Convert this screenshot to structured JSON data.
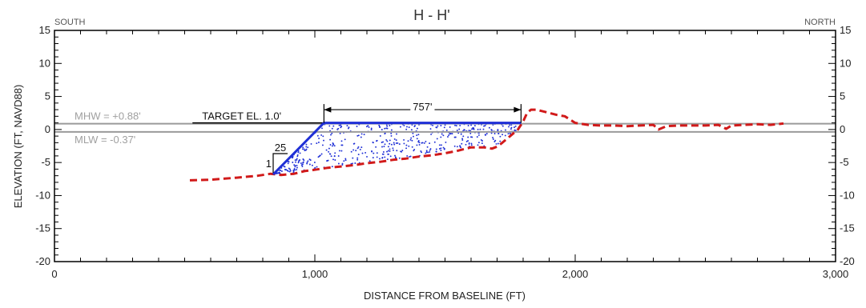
{
  "chart_data": {
    "type": "line",
    "title": "H - H'",
    "xlabel": "DISTANCE FROM BASELINE (FT)",
    "ylabel": "ELEVATION (FT, NAVD88)",
    "xlim": [
      0,
      3000
    ],
    "ylim": [
      -20,
      15
    ],
    "x_ticks": [
      0,
      1000,
      2000,
      3000
    ],
    "x_tick_labels": [
      "0",
      "1,000",
      "2,000",
      "3,000"
    ],
    "y_ticks": [
      -20,
      -15,
      -10,
      -5,
      0,
      5,
      10,
      15
    ],
    "y_tick_labels": [
      "-20",
      "-15",
      "-10",
      "-5",
      "0",
      "5",
      "10",
      "15"
    ],
    "direction_labels": {
      "left": "SOUTH",
      "right": "NORTH"
    },
    "grid": false,
    "colors": {
      "existing_profile": "#d11a1a",
      "fill_template": "#1f2fd6",
      "tide_lines": "#9a9a9a",
      "axis": "#000000"
    },
    "tide_lines": [
      {
        "label": "MHW = +0.88'",
        "y": 0.88
      },
      {
        "label": "MLW = -0.37'",
        "y": -0.37
      }
    ],
    "target": {
      "label": "TARGET EL. 1.0'",
      "y": 1.0,
      "x_start": 530,
      "x_end": 1035
    },
    "dimension": {
      "label": "757'",
      "x_start": 1035,
      "x_end": 1792,
      "y": 3.0
    },
    "slope": {
      "run_label": "25",
      "rise_label": "1"
    },
    "series": [
      {
        "style": "dashed",
        "x": [
          520,
          600,
          700,
          780,
          830,
          870,
          920,
          960,
          1000,
          1050,
          1100,
          1150,
          1200,
          1250,
          1300,
          1350,
          1400,
          1450,
          1500,
          1550,
          1600,
          1650,
          1680,
          1700,
          1720,
          1750,
          1780,
          1800,
          1815,
          1830,
          1850,
          1870,
          1900,
          1930,
          1960,
          2000,
          2050,
          2100,
          2150,
          2200,
          2250,
          2300,
          2320,
          2350,
          2400,
          2450,
          2500,
          2550,
          2580,
          2600,
          2650,
          2700,
          2750,
          2800
        ],
        "y": [
          -7.7,
          -7.6,
          -7.3,
          -7.0,
          -6.7,
          -6.9,
          -6.7,
          -6.3,
          -6.1,
          -5.8,
          -5.6,
          -5.4,
          -5.1,
          -4.9,
          -4.6,
          -4.4,
          -4.1,
          -3.9,
          -3.6,
          -3.2,
          -2.7,
          -2.7,
          -2.9,
          -2.6,
          -2.0,
          -1.0,
          0.0,
          1.2,
          2.5,
          3.0,
          3.0,
          2.8,
          2.5,
          2.2,
          2.0,
          1.0,
          0.7,
          0.6,
          0.6,
          0.5,
          0.6,
          0.7,
          0.0,
          0.5,
          0.6,
          0.6,
          0.6,
          0.7,
          0.1,
          0.6,
          0.7,
          0.8,
          0.7,
          0.9
        ]
      },
      {
        "style": "solid",
        "x": [
          840,
          1035,
          1792
        ],
        "y": [
          -6.8,
          1.0,
          1.0
        ]
      }
    ]
  }
}
